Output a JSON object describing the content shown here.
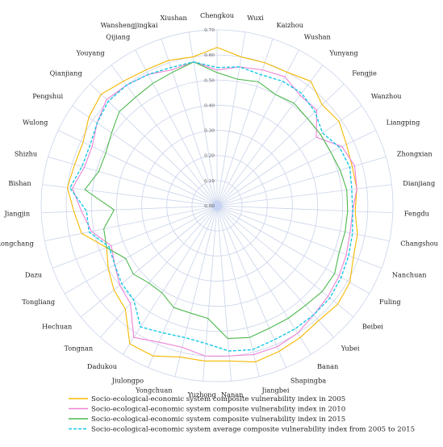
{
  "chart_data": {
    "type": "radar",
    "title": "",
    "categories": [
      "Chengkou",
      "Wuxi",
      "Kaizhou",
      "Wushan",
      "Yunyang",
      "Fengjie",
      "Wanzhou",
      "Liangping",
      "Zhongxian",
      "Dianjiang",
      "Fengdu",
      "Changshou",
      "Nanchuan",
      "Fuling",
      "Beibei",
      "Yubei",
      "Banan",
      "Shapingba",
      "Jiangbei",
      "Nanan",
      "Yuzhong",
      "Yongchuan",
      "Jiulongpo",
      "Dadukou",
      "Tongnan",
      "Hechuan",
      "Tongliang",
      "Dazu",
      "Rongchang",
      "Jiangjin",
      "Bishan",
      "Shizhu",
      "Wulong",
      "Pengshui",
      "Qianjiang",
      "Youyang",
      "Qijiang",
      "Wanshengjingkai",
      "Xiushan"
    ],
    "rlim": [
      0,
      0.7
    ],
    "ticks": [
      "0.00",
      "0.10",
      "0.20",
      "0.30",
      "0.40",
      "0.50",
      "0.60",
      "0.70"
    ],
    "grid": true,
    "legend_position": "bottom",
    "series": [
      {
        "name": "Socio-ecological-economic system composite vulnerability index in 2005",
        "color": "#f5b800",
        "dash": "solid",
        "values": [
          0.63,
          0.6,
          0.6,
          0.6,
          0.62,
          0.58,
          0.59,
          0.57,
          0.56,
          0.56,
          0.55,
          0.57,
          0.58,
          0.61,
          0.62,
          0.61,
          0.62,
          0.63,
          0.64,
          0.62,
          0.62,
          0.62,
          0.65,
          0.65,
          0.55,
          0.53,
          0.5,
          0.47,
          0.55,
          0.57,
          0.6,
          0.59,
          0.59,
          0.62,
          0.64,
          0.62,
          0.61,
          0.61,
          0.6
        ]
      },
      {
        "name": "Socio-ecological-economic system composite vulnerability index in 2010",
        "color": "#ee82d6",
        "dash": "solid",
        "values": [
          0.54,
          0.56,
          0.57,
          0.58,
          0.55,
          0.55,
          0.48,
          0.55,
          0.57,
          0.56,
          0.54,
          0.54,
          0.55,
          0.56,
          0.57,
          0.58,
          0.6,
          0.61,
          0.61,
          0.6,
          0.6,
          0.58,
          0.59,
          0.62,
          0.52,
          0.5,
          0.47,
          0.45,
          0.51,
          0.54,
          0.58,
          0.55,
          0.55,
          0.58,
          0.61,
          0.6,
          0.59,
          0.57,
          0.58
        ]
      },
      {
        "name": "Socio-ecological-economic system composite vulnerability index in 2015",
        "color": "#4db84d",
        "dash": "solid",
        "values": [
          0.53,
          0.51,
          0.52,
          0.5,
          0.51,
          0.5,
          0.5,
          0.5,
          0.51,
          0.52,
          0.52,
          0.52,
          0.52,
          0.54,
          0.54,
          0.53,
          0.53,
          0.53,
          0.54,
          0.53,
          0.45,
          0.44,
          0.44,
          0.41,
          0.41,
          0.43,
          0.42,
          0.47,
          0.46,
          0.41,
          0.53,
          0.49,
          0.49,
          0.51,
          0.54,
          0.54,
          0.55,
          0.56,
          0.58
        ]
      },
      {
        "name": "Socio-ecological-economic system average composite vulnerability index from 2005 to 2015",
        "color": "#18c8e6",
        "dash": "dashed",
        "values": [
          0.55,
          0.56,
          0.55,
          0.56,
          0.56,
          0.54,
          0.51,
          0.54,
          0.55,
          0.54,
          0.54,
          0.55,
          0.56,
          0.57,
          0.58,
          0.58,
          0.58,
          0.58,
          0.59,
          0.58,
          0.55,
          0.54,
          0.55,
          0.57,
          0.5,
          0.49,
          0.47,
          0.46,
          0.52,
          0.52,
          0.59,
          0.56,
          0.56,
          0.58,
          0.6,
          0.6,
          0.59,
          0.58,
          0.58
        ]
      }
    ]
  }
}
